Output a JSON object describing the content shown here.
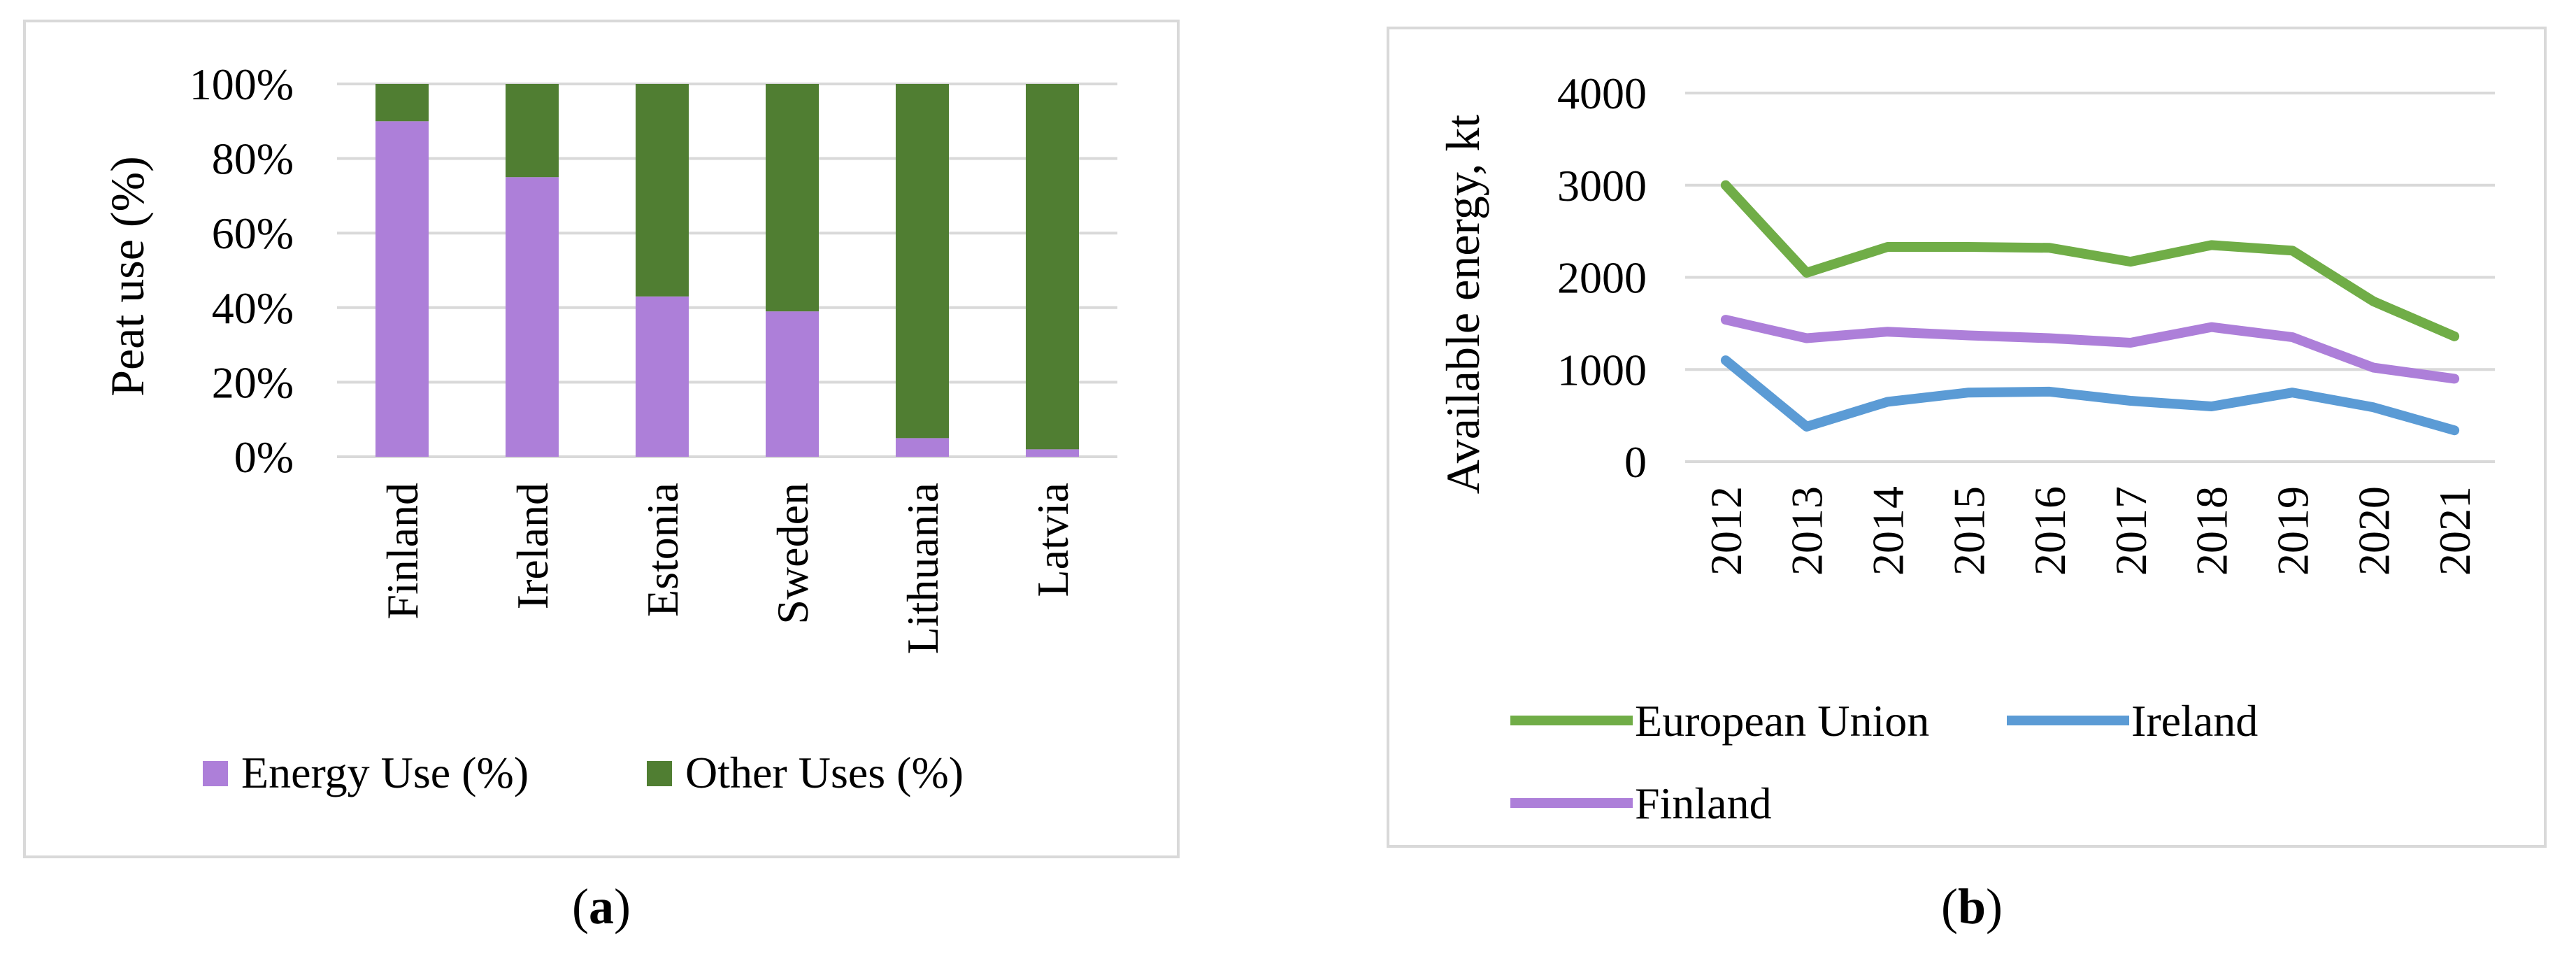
{
  "chart_data": [
    {
      "type": "bar",
      "stacked": true,
      "title": "",
      "xlabel": "",
      "ylabel": "Peat use (%)",
      "ylim": [
        0,
        100
      ],
      "yticks": [
        "0%",
        "20%",
        "40%",
        "60%",
        "80%",
        "100%"
      ],
      "categories": [
        "Finland",
        "Ireland",
        "Estonia",
        "Sweden",
        "Lithuania",
        "Latvia"
      ],
      "series": [
        {
          "name": "Energy Use (%)",
          "color": "#ad7fd9",
          "values": [
            90,
            75,
            43,
            39,
            5,
            2
          ]
        },
        {
          "name": "Other Uses (%)",
          "color": "#507e32",
          "values": [
            10,
            25,
            57,
            61,
            95,
            98
          ]
        }
      ],
      "grid": true,
      "legend": "bottom",
      "panel_label": "a"
    },
    {
      "type": "line",
      "title": "",
      "xlabel": "",
      "ylabel": "Available energy, kt",
      "ylim": [
        0,
        4000
      ],
      "yticks": [
        "0",
        "1000",
        "2000",
        "3000",
        "4000"
      ],
      "x": [
        "2012",
        "2013",
        "2014",
        "2015",
        "2016",
        "2017",
        "2018",
        "2019",
        "2020",
        "2021"
      ],
      "series": [
        {
          "name": "European Union",
          "color": "#70ad47",
          "values": [
            3000,
            2050,
            2330,
            2330,
            2320,
            2170,
            2350,
            2290,
            1740,
            1360
          ]
        },
        {
          "name": "Ireland",
          "color": "#5b9bd5",
          "values": [
            1100,
            380,
            650,
            750,
            760,
            660,
            600,
            750,
            590,
            340
          ]
        },
        {
          "name": "Finland",
          "color": "#ad7fd9",
          "values": [
            1540,
            1340,
            1410,
            1370,
            1340,
            1290,
            1460,
            1350,
            1020,
            900
          ]
        }
      ],
      "grid": true,
      "legend": "bottom",
      "panel_label": "b"
    }
  ]
}
